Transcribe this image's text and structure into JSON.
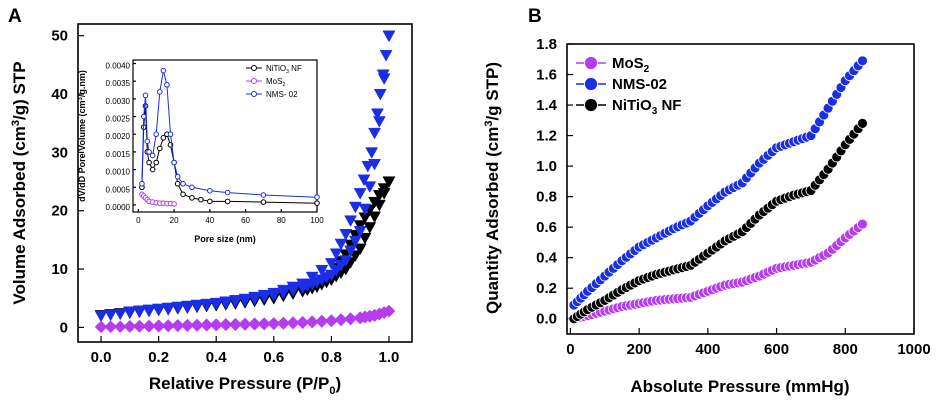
{
  "chart_data": [
    {
      "panel": "A",
      "type": "scatter",
      "xlabel": "Relative Pressure (P/P",
      "xlabel_sub": "0",
      "xlabel_end": ")",
      "ylabel": "Volume Adsorbed (cm",
      "ylabel_sup": "3",
      "ylabel_end": "/g) STP",
      "xlim": [
        -0.08,
        1.08
      ],
      "ylim": [
        -2.5,
        52
      ],
      "xticks": [
        "0.0",
        "0.2",
        "0.4",
        "0.6",
        "0.8",
        "1.0"
      ],
      "yticks": [
        "0",
        "10",
        "20",
        "30",
        "40",
        "50"
      ],
      "series": [
        {
          "name": "NiTiO3 NF",
          "color": "#000000",
          "marker": "triangle-down",
          "adsorption": [
            [
              0.0,
              2.1
            ],
            [
              0.1,
              2.6
            ],
            [
              0.2,
              3.0
            ],
            [
              0.3,
              3.4
            ],
            [
              0.4,
              3.8
            ],
            [
              0.5,
              4.3
            ],
            [
              0.6,
              5.0
            ],
            [
              0.7,
              6.2
            ],
            [
              0.75,
              7.0
            ],
            [
              0.8,
              8.2
            ],
            [
              0.85,
              10.0
            ],
            [
              0.9,
              13.5
            ],
            [
              0.95,
              19.0
            ],
            [
              1.0,
              25.0
            ]
          ],
          "desorption": [
            [
              1.0,
              25.0
            ],
            [
              0.95,
              21.5
            ],
            [
              0.9,
              17.5
            ],
            [
              0.85,
              12.5
            ],
            [
              0.8,
              9.0
            ],
            [
              0.7,
              6.5
            ],
            [
              0.6,
              5.2
            ],
            [
              0.5,
              4.4
            ],
            [
              0.4,
              3.9
            ],
            [
              0.3,
              3.5
            ],
            [
              0.2,
              3.1
            ],
            [
              0.1,
              2.7
            ]
          ]
        },
        {
          "name": "NMS-02",
          "color": "#1a2ee6",
          "marker": "triangle-down",
          "adsorption": [
            [
              0.0,
              2.0
            ],
            [
              0.1,
              2.5
            ],
            [
              0.2,
              3.0
            ],
            [
              0.3,
              3.5
            ],
            [
              0.4,
              4.0
            ],
            [
              0.5,
              4.6
            ],
            [
              0.6,
              5.5
            ],
            [
              0.7,
              6.8
            ],
            [
              0.75,
              7.8
            ],
            [
              0.8,
              9.0
            ],
            [
              0.85,
              11.5
            ],
            [
              0.9,
              16.5
            ],
            [
              0.95,
              28.0
            ],
            [
              1.0,
              50.0
            ]
          ],
          "desorption": [
            [
              1.0,
              50.0
            ],
            [
              0.97,
              40.0
            ],
            [
              0.94,
              30.0
            ],
            [
              0.9,
              23.0
            ],
            [
              0.85,
              16.0
            ],
            [
              0.8,
              11.0
            ],
            [
              0.7,
              7.5
            ],
            [
              0.6,
              5.9
            ],
            [
              0.5,
              4.9
            ],
            [
              0.4,
              4.2
            ],
            [
              0.3,
              3.7
            ],
            [
              0.2,
              3.2
            ],
            [
              0.1,
              2.7
            ]
          ]
        },
        {
          "name": "MoS2",
          "color": "#b53cf0",
          "marker": "diamond",
          "adsorption": [
            [
              0.0,
              0.1
            ],
            [
              0.1,
              0.15
            ],
            [
              0.2,
              0.2
            ],
            [
              0.3,
              0.3
            ],
            [
              0.4,
              0.4
            ],
            [
              0.5,
              0.5
            ],
            [
              0.6,
              0.6
            ],
            [
              0.7,
              0.8
            ],
            [
              0.8,
              1.1
            ],
            [
              0.9,
              1.6
            ],
            [
              0.95,
              2.0
            ],
            [
              1.0,
              2.8
            ]
          ],
          "desorption": [
            [
              1.0,
              2.8
            ],
            [
              0.95,
              2.1
            ],
            [
              0.9,
              1.7
            ],
            [
              0.8,
              1.2
            ],
            [
              0.7,
              0.9
            ],
            [
              0.6,
              0.7
            ],
            [
              0.5,
              0.6
            ],
            [
              0.4,
              0.5
            ],
            [
              0.3,
              0.4
            ],
            [
              0.2,
              0.3
            ],
            [
              0.1,
              0.2
            ]
          ]
        }
      ],
      "inset": {
        "type": "line",
        "xlabel": "Pore size (nm)",
        "ylabel": "dV/dD Pore Volume (cm",
        "ylabel_sup": "3",
        "ylabel_end": "/g.nm)",
        "xlim": [
          -3,
          100
        ],
        "ylim": [
          -0.0002,
          0.0041
        ],
        "xticks": [
          "0",
          "20",
          "40",
          "60",
          "80",
          "100"
        ],
        "yticks": [
          "0.0000",
          "0.0005",
          "0.0010",
          "0.0015",
          "0.0020",
          "0.0025",
          "0.0030",
          "0.0035",
          "0.0040"
        ],
        "legend": [
          {
            "label": "NiTiO",
            "sub": "3",
            "end": " NF"
          },
          {
            "label": "MoS",
            "sub": "2",
            "end": ""
          },
          {
            "label": "NMS- 02",
            "sub": "",
            "end": ""
          }
        ],
        "series": [
          {
            "name": "NiTiO3 NF",
            "color": "#000000",
            "points": [
              [
                2,
                0.0005
              ],
              [
                3,
                0.0022
              ],
              [
                4,
                0.0028
              ],
              [
                5,
                0.0015
              ],
              [
                6,
                0.0012
              ],
              [
                8,
                0.001
              ],
              [
                10,
                0.0012
              ],
              [
                12,
                0.0016
              ],
              [
                14,
                0.0019
              ],
              [
                16,
                0.002
              ],
              [
                18,
                0.0017
              ],
              [
                20,
                0.0012
              ],
              [
                22,
                0.0006
              ],
              [
                25,
                0.0003
              ],
              [
                30,
                0.0002
              ],
              [
                35,
                0.00015
              ],
              [
                40,
                0.0001
              ],
              [
                50,
                0.0001
              ],
              [
                70,
                8e-05
              ],
              [
                100,
                5e-05
              ]
            ]
          },
          {
            "name": "MoS2",
            "color": "#b53cf0",
            "points": [
              [
                2,
                0.0003
              ],
              [
                3,
                0.00025
              ],
              [
                4,
                0.0002
              ],
              [
                5,
                0.00015
              ],
              [
                6,
                0.0001
              ],
              [
                8,
                8e-05
              ],
              [
                10,
                6e-05
              ],
              [
                12,
                5e-05
              ],
              [
                14,
                5e-05
              ],
              [
                16,
                4e-05
              ],
              [
                18,
                4e-05
              ],
              [
                20,
                3e-05
              ]
            ]
          },
          {
            "name": "NMS-02",
            "color": "#1a2ee6",
            "points": [
              [
                2,
                0.0006
              ],
              [
                3,
                0.0025
              ],
              [
                4,
                0.0031
              ],
              [
                5,
                0.0018
              ],
              [
                6,
                0.0015
              ],
              [
                8,
                0.0014
              ],
              [
                10,
                0.002
              ],
              [
                12,
                0.0032
              ],
              [
                14,
                0.0038
              ],
              [
                16,
                0.0034
              ],
              [
                18,
                0.002
              ],
              [
                20,
                0.0012
              ],
              [
                22,
                0.0008
              ],
              [
                25,
                0.0006
              ],
              [
                30,
                0.0005
              ],
              [
                40,
                0.0004
              ],
              [
                50,
                0.00035
              ],
              [
                70,
                0.00028
              ],
              [
                100,
                0.00022
              ]
            ]
          }
        ]
      }
    },
    {
      "panel": "B",
      "type": "scatter",
      "xlabel": "Absolute Pressure (mmHg)",
      "ylabel": "Quantity Adsorbed (cm",
      "ylabel_sup": "3",
      "ylabel_end": "/g STP)",
      "xlim": [
        -10,
        1000
      ],
      "ylim": [
        -0.1,
        1.8
      ],
      "xticks": [
        "0",
        "200",
        "400",
        "600",
        "800",
        "1000"
      ],
      "yticks": [
        "0.0",
        "0.2",
        "0.4",
        "0.6",
        "0.8",
        "1.0",
        "1.2",
        "1.4",
        "1.6",
        "1.8"
      ],
      "legend": [
        {
          "label": "MoS",
          "sub": "2",
          "end": ""
        },
        {
          "label": "NMS-02",
          "sub": "",
          "end": ""
        },
        {
          "label": "NiTiO",
          "sub": "3",
          "end": " NF"
        }
      ],
      "series": [
        {
          "name": "MoS2",
          "color": "#b53cf0",
          "points": [
            [
              10,
              0.0
            ],
            [
              50,
              0.02
            ],
            [
              100,
              0.05
            ],
            [
              150,
              0.08
            ],
            [
              200,
              0.1
            ],
            [
              250,
              0.12
            ],
            [
              300,
              0.13
            ],
            [
              350,
              0.14
            ],
            [
              400,
              0.18
            ],
            [
              450,
              0.22
            ],
            [
              500,
              0.24
            ],
            [
              550,
              0.28
            ],
            [
              600,
              0.33
            ],
            [
              650,
              0.35
            ],
            [
              700,
              0.37
            ],
            [
              750,
              0.43
            ],
            [
              800,
              0.53
            ],
            [
              850,
              0.62
            ]
          ]
        },
        {
          "name": "NMS-02",
          "color": "#1a2ee6",
          "points": [
            [
              10,
              0.09
            ],
            [
              50,
              0.18
            ],
            [
              100,
              0.28
            ],
            [
              150,
              0.38
            ],
            [
              200,
              0.47
            ],
            [
              250,
              0.53
            ],
            [
              300,
              0.59
            ],
            [
              350,
              0.64
            ],
            [
              400,
              0.74
            ],
            [
              450,
              0.83
            ],
            [
              500,
              0.89
            ],
            [
              550,
              1.02
            ],
            [
              600,
              1.12
            ],
            [
              650,
              1.16
            ],
            [
              700,
              1.2
            ],
            [
              750,
              1.38
            ],
            [
              800,
              1.56
            ],
            [
              850,
              1.69
            ]
          ]
        },
        {
          "name": "NiTiO3 NF",
          "color": "#000000",
          "points": [
            [
              10,
              0.0
            ],
            [
              50,
              0.06
            ],
            [
              100,
              0.12
            ],
            [
              150,
              0.19
            ],
            [
              200,
              0.25
            ],
            [
              250,
              0.29
            ],
            [
              300,
              0.32
            ],
            [
              350,
              0.35
            ],
            [
              400,
              0.43
            ],
            [
              450,
              0.51
            ],
            [
              500,
              0.57
            ],
            [
              550,
              0.68
            ],
            [
              600,
              0.77
            ],
            [
              650,
              0.81
            ],
            [
              700,
              0.84
            ],
            [
              750,
              0.98
            ],
            [
              800,
              1.14
            ],
            [
              850,
              1.28
            ]
          ]
        }
      ]
    }
  ],
  "colors": {
    "black": "#000000",
    "blue": "#1a2ee6",
    "purple": "#b53cf0"
  }
}
